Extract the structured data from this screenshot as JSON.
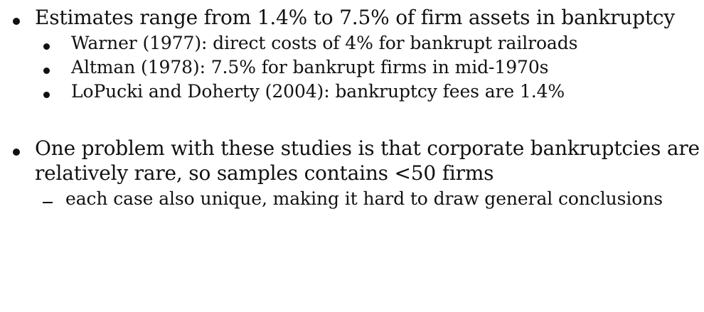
{
  "slide": {
    "items": [
      {
        "text": "Estimates range from 1.4% to 7.5% of firm assets in bankruptcy",
        "subitems": [
          "Warner (1977): direct costs of 4% for bankrupt railroads",
          "Altman (1978): 7.5% for bankrupt firms in mid-1970s",
          "LoPucki and Doherty (2004): bankruptcy fees are 1.4%"
        ]
      },
      {
        "text_line1": "One problem with these studies is that corporate bankruptcies are",
        "text_line2": "relatively rare, so samples contains <50 firms",
        "dash_item": "each case also unique, making it hard to draw general conclusions"
      }
    ]
  }
}
